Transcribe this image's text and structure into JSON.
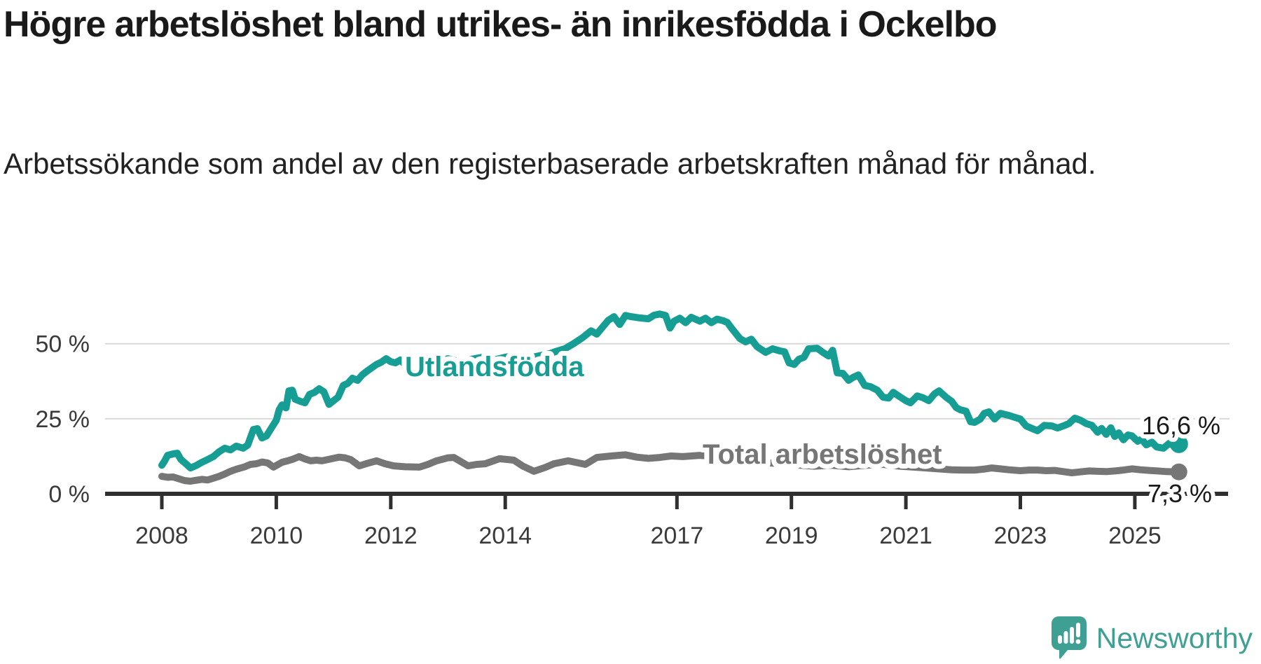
{
  "header": {
    "title": "Högre arbetslöshet bland utrikes- än inrikesfödda i Ockelbo",
    "subtitle": "Arbetssökande som andel av den registerbaserade arbetskraften månad för månad."
  },
  "chart_data": {
    "type": "line",
    "title": "Högre arbetslöshet bland utrikes- än inrikesfödda i Ockelbo",
    "subtitle": "Arbetssökande som andel av den registerbaserade arbetskraften månad för månad.",
    "xlabel": "",
    "ylabel": "",
    "grid": true,
    "x_range": [
      2008,
      2025.95
    ],
    "ylim": [
      0,
      62
    ],
    "x_ticks": [
      2008,
      2010,
      2012,
      2014,
      2017,
      2019,
      2021,
      2023,
      2025
    ],
    "y_ticks": [
      {
        "value": 0,
        "label": "0 %"
      },
      {
        "value": 25,
        "label": "25 %"
      },
      {
        "value": 50,
        "label": "50 %"
      }
    ],
    "colors": {
      "axis": "#2f2f2f",
      "gridline": "#d9d9d9",
      "tick_text": "#3a3a3a",
      "value_label_text": "#1a1a1a"
    },
    "series": [
      {
        "name": "Utlandsfödda",
        "color": "#169d94",
        "line_label": "Utlandsfödda",
        "end_label": "16,6 %",
        "end_value": 16.6,
        "points": [
          [
            2008.0,
            9.5
          ],
          [
            2008.05,
            11.0
          ],
          [
            2008.1,
            12.8
          ],
          [
            2008.2,
            13.3
          ],
          [
            2008.27,
            13.5
          ],
          [
            2008.33,
            11.5
          ],
          [
            2008.42,
            10.0
          ],
          [
            2008.5,
            8.6
          ],
          [
            2008.6,
            9.4
          ],
          [
            2008.7,
            10.5
          ],
          [
            2008.8,
            11.4
          ],
          [
            2008.9,
            12.4
          ],
          [
            2009.0,
            14.0
          ],
          [
            2009.1,
            15.2
          ],
          [
            2009.2,
            14.6
          ],
          [
            2009.3,
            15.9
          ],
          [
            2009.42,
            15.2
          ],
          [
            2009.5,
            16.2
          ],
          [
            2009.6,
            21.4
          ],
          [
            2009.67,
            21.7
          ],
          [
            2009.75,
            18.6
          ],
          [
            2009.83,
            19.3
          ],
          [
            2009.92,
            22.1
          ],
          [
            2010.0,
            24.5
          ],
          [
            2010.05,
            28.0
          ],
          [
            2010.1,
            29.6
          ],
          [
            2010.17,
            28.6
          ],
          [
            2010.22,
            34.3
          ],
          [
            2010.28,
            34.5
          ],
          [
            2010.33,
            31.5
          ],
          [
            2010.42,
            30.8
          ],
          [
            2010.5,
            30.3
          ],
          [
            2010.58,
            33.1
          ],
          [
            2010.67,
            33.8
          ],
          [
            2010.75,
            35.0
          ],
          [
            2010.83,
            34.0
          ],
          [
            2010.92,
            29.8
          ],
          [
            2011.0,
            31.0
          ],
          [
            2011.08,
            32.2
          ],
          [
            2011.17,
            36.1
          ],
          [
            2011.25,
            36.8
          ],
          [
            2011.33,
            38.5
          ],
          [
            2011.42,
            37.8
          ],
          [
            2011.5,
            39.6
          ],
          [
            2011.58,
            40.8
          ],
          [
            2011.67,
            42.0
          ],
          [
            2011.75,
            43.1
          ],
          [
            2011.83,
            43.8
          ],
          [
            2011.92,
            45.0
          ],
          [
            2012.0,
            44.0
          ],
          [
            2012.08,
            43.6
          ],
          [
            2012.17,
            44.6
          ],
          [
            2012.25,
            43.0
          ],
          [
            2012.4,
            43.8
          ],
          [
            2012.55,
            44.5
          ],
          [
            2012.7,
            43.5
          ],
          [
            2012.85,
            44.2
          ],
          [
            2013.0,
            45.0
          ],
          [
            2013.2,
            44.0
          ],
          [
            2013.4,
            44.8
          ],
          [
            2013.6,
            45.5
          ],
          [
            2013.8,
            44.6
          ],
          [
            2014.0,
            45.5
          ],
          [
            2014.2,
            46.2
          ],
          [
            2014.4,
            45.2
          ],
          [
            2014.6,
            46.0
          ],
          [
            2014.76,
            46.6
          ],
          [
            2014.9,
            47.5
          ],
          [
            2015.05,
            48.4
          ],
          [
            2015.2,
            50.1
          ],
          [
            2015.35,
            52.0
          ],
          [
            2015.5,
            54.3
          ],
          [
            2015.6,
            53.2
          ],
          [
            2015.7,
            55.5
          ],
          [
            2015.8,
            57.8
          ],
          [
            2015.9,
            59.0
          ],
          [
            2016.0,
            56.4
          ],
          [
            2016.1,
            59.4
          ],
          [
            2016.2,
            59.0
          ],
          [
            2016.35,
            58.6
          ],
          [
            2016.5,
            58.3
          ],
          [
            2016.6,
            59.5
          ],
          [
            2016.7,
            59.9
          ],
          [
            2016.8,
            59.4
          ],
          [
            2016.88,
            55.2
          ],
          [
            2016.95,
            57.5
          ],
          [
            2017.05,
            58.5
          ],
          [
            2017.15,
            57.0
          ],
          [
            2017.25,
            58.8
          ],
          [
            2017.4,
            57.5
          ],
          [
            2017.5,
            58.5
          ],
          [
            2017.6,
            57.0
          ],
          [
            2017.7,
            58.2
          ],
          [
            2017.8,
            57.7
          ],
          [
            2017.88,
            57.1
          ],
          [
            2017.97,
            54.8
          ],
          [
            2018.1,
            51.7
          ],
          [
            2018.2,
            50.6
          ],
          [
            2018.3,
            51.5
          ],
          [
            2018.4,
            49.0
          ],
          [
            2018.55,
            47.1
          ],
          [
            2018.67,
            48.3
          ],
          [
            2018.8,
            47.6
          ],
          [
            2018.88,
            47.3
          ],
          [
            2018.96,
            43.6
          ],
          [
            2019.05,
            43.1
          ],
          [
            2019.13,
            44.8
          ],
          [
            2019.22,
            45.5
          ],
          [
            2019.3,
            48.3
          ],
          [
            2019.45,
            48.5
          ],
          [
            2019.55,
            47.1
          ],
          [
            2019.65,
            45.9
          ],
          [
            2019.72,
            47.8
          ],
          [
            2019.8,
            40.3
          ],
          [
            2019.9,
            40.1
          ],
          [
            2020.0,
            37.8
          ],
          [
            2020.08,
            38.8
          ],
          [
            2020.17,
            39.6
          ],
          [
            2020.28,
            36.1
          ],
          [
            2020.38,
            35.7
          ],
          [
            2020.5,
            34.5
          ],
          [
            2020.6,
            32.2
          ],
          [
            2020.7,
            31.9
          ],
          [
            2020.78,
            33.8
          ],
          [
            2020.88,
            32.5
          ],
          [
            2021.0,
            31.0
          ],
          [
            2021.08,
            30.3
          ],
          [
            2021.2,
            32.6
          ],
          [
            2021.3,
            32.0
          ],
          [
            2021.4,
            31.0
          ],
          [
            2021.5,
            33.3
          ],
          [
            2021.58,
            34.3
          ],
          [
            2021.7,
            32.2
          ],
          [
            2021.8,
            30.8
          ],
          [
            2021.88,
            28.7
          ],
          [
            2021.95,
            28.0
          ],
          [
            2022.05,
            27.5
          ],
          [
            2022.13,
            24.0
          ],
          [
            2022.2,
            23.8
          ],
          [
            2022.3,
            24.9
          ],
          [
            2022.37,
            26.8
          ],
          [
            2022.45,
            27.3
          ],
          [
            2022.55,
            24.9
          ],
          [
            2022.65,
            26.8
          ],
          [
            2022.8,
            26.1
          ],
          [
            2022.9,
            25.5
          ],
          [
            2023.0,
            24.9
          ],
          [
            2023.1,
            22.6
          ],
          [
            2023.2,
            21.8
          ],
          [
            2023.3,
            21.0
          ],
          [
            2023.42,
            22.8
          ],
          [
            2023.55,
            22.6
          ],
          [
            2023.65,
            21.9
          ],
          [
            2023.75,
            22.6
          ],
          [
            2023.85,
            23.4
          ],
          [
            2023.95,
            25.2
          ],
          [
            2024.05,
            24.5
          ],
          [
            2024.15,
            23.4
          ],
          [
            2024.25,
            22.8
          ],
          [
            2024.35,
            20.5
          ],
          [
            2024.42,
            21.8
          ],
          [
            2024.5,
            19.8
          ],
          [
            2024.58,
            22.0
          ],
          [
            2024.65,
            19.1
          ],
          [
            2024.72,
            20.3
          ],
          [
            2024.8,
            18.0
          ],
          [
            2024.88,
            19.6
          ],
          [
            2024.95,
            19.3
          ],
          [
            2025.05,
            17.5
          ],
          [
            2025.12,
            18.2
          ],
          [
            2025.2,
            16.3
          ],
          [
            2025.3,
            17.2
          ],
          [
            2025.38,
            15.6
          ],
          [
            2025.5,
            15.2
          ],
          [
            2025.6,
            16.8
          ],
          [
            2025.7,
            15.9
          ],
          [
            2025.77,
            16.6
          ]
        ]
      },
      {
        "name": "Total arbetslöshet",
        "color": "#767676",
        "line_label": "Total arbetslöshet",
        "end_label": "7,3 %",
        "end_value": 7.3,
        "points": [
          [
            2008.0,
            5.8
          ],
          [
            2008.1,
            5.5
          ],
          [
            2008.2,
            5.6
          ],
          [
            2008.3,
            5.0
          ],
          [
            2008.4,
            4.4
          ],
          [
            2008.5,
            4.2
          ],
          [
            2008.6,
            4.5
          ],
          [
            2008.7,
            4.8
          ],
          [
            2008.8,
            4.6
          ],
          [
            2008.9,
            5.2
          ],
          [
            2009.0,
            5.8
          ],
          [
            2009.1,
            6.6
          ],
          [
            2009.2,
            7.5
          ],
          [
            2009.3,
            8.2
          ],
          [
            2009.45,
            9.0
          ],
          [
            2009.55,
            9.8
          ],
          [
            2009.65,
            10.0
          ],
          [
            2009.75,
            10.6
          ],
          [
            2009.85,
            10.3
          ],
          [
            2009.95,
            8.9
          ],
          [
            2010.1,
            10.5
          ],
          [
            2010.2,
            11.0
          ],
          [
            2010.3,
            11.6
          ],
          [
            2010.4,
            12.4
          ],
          [
            2010.5,
            11.6
          ],
          [
            2010.6,
            11.0
          ],
          [
            2010.7,
            11.2
          ],
          [
            2010.8,
            11.0
          ],
          [
            2010.9,
            11.4
          ],
          [
            2011.0,
            11.8
          ],
          [
            2011.1,
            12.2
          ],
          [
            2011.2,
            12.0
          ],
          [
            2011.3,
            11.4
          ],
          [
            2011.45,
            9.3
          ],
          [
            2011.6,
            10.2
          ],
          [
            2011.75,
            11.0
          ],
          [
            2011.9,
            10.0
          ],
          [
            2012.05,
            9.3
          ],
          [
            2012.25,
            9.0
          ],
          [
            2012.5,
            8.9
          ],
          [
            2012.65,
            9.8
          ],
          [
            2012.8,
            11.0
          ],
          [
            2013.0,
            12.0
          ],
          [
            2013.1,
            12.1
          ],
          [
            2013.35,
            9.3
          ],
          [
            2013.5,
            9.8
          ],
          [
            2013.65,
            10.0
          ],
          [
            2013.9,
            11.7
          ],
          [
            2014.15,
            11.2
          ],
          [
            2014.3,
            9.3
          ],
          [
            2014.5,
            7.5
          ],
          [
            2014.7,
            8.8
          ],
          [
            2014.85,
            10.0
          ],
          [
            2015.1,
            11.0
          ],
          [
            2015.4,
            9.8
          ],
          [
            2015.6,
            12.1
          ],
          [
            2015.85,
            12.6
          ],
          [
            2016.1,
            13.0
          ],
          [
            2016.3,
            12.2
          ],
          [
            2016.5,
            11.8
          ],
          [
            2016.7,
            12.1
          ],
          [
            2016.9,
            12.6
          ],
          [
            2017.1,
            12.4
          ],
          [
            2017.4,
            12.8
          ],
          [
            2017.6,
            12.5
          ],
          [
            2017.9,
            12.0
          ],
          [
            2018.2,
            11.2
          ],
          [
            2018.5,
            10.5
          ],
          [
            2018.8,
            10.0
          ],
          [
            2019.1,
            9.6
          ],
          [
            2019.4,
            9.2
          ],
          [
            2019.7,
            9.5
          ],
          [
            2020.0,
            9.0
          ],
          [
            2020.3,
            9.5
          ],
          [
            2020.6,
            9.8
          ],
          [
            2020.9,
            9.2
          ],
          [
            2021.2,
            8.8
          ],
          [
            2021.5,
            8.4
          ],
          [
            2021.8,
            8.0
          ],
          [
            2022.0,
            7.9
          ],
          [
            2022.2,
            7.9
          ],
          [
            2022.35,
            8.2
          ],
          [
            2022.5,
            8.6
          ],
          [
            2022.65,
            8.3
          ],
          [
            2022.8,
            8.0
          ],
          [
            2023.0,
            7.7
          ],
          [
            2023.15,
            7.9
          ],
          [
            2023.3,
            7.9
          ],
          [
            2023.45,
            7.7
          ],
          [
            2023.6,
            7.8
          ],
          [
            2023.75,
            7.4
          ],
          [
            2023.9,
            7.0
          ],
          [
            2024.05,
            7.3
          ],
          [
            2024.2,
            7.6
          ],
          [
            2024.35,
            7.5
          ],
          [
            2024.5,
            7.4
          ],
          [
            2024.65,
            7.6
          ],
          [
            2024.8,
            7.9
          ],
          [
            2024.95,
            8.3
          ],
          [
            2025.1,
            8.0
          ],
          [
            2025.25,
            7.8
          ],
          [
            2025.4,
            7.6
          ],
          [
            2025.55,
            7.4
          ],
          [
            2025.77,
            7.3
          ]
        ]
      }
    ],
    "legend_position": "on-line-labels"
  },
  "branding": {
    "name": "Newsworthy",
    "color": "#3da093",
    "icon": "speech-bubble-bar-chart-icon"
  }
}
